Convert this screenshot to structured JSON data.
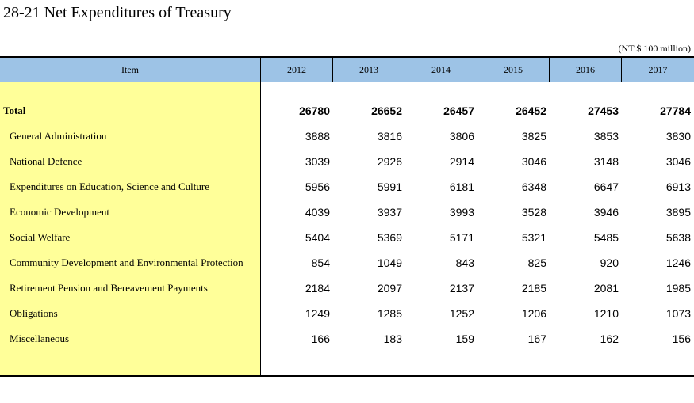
{
  "title": "28-21  Net Expenditures of Treasury",
  "unit": "(NT $ 100 million)",
  "header": {
    "item": "Item",
    "years": [
      "2012",
      "2013",
      "2014",
      "2015",
      "2016",
      "2017"
    ]
  },
  "rows": [
    {
      "label": "Total",
      "values": [
        "26780",
        "26652",
        "26457",
        "26452",
        "27453",
        "27784"
      ]
    },
    {
      "label": "General Administration",
      "values": [
        "3888",
        "3816",
        "3806",
        "3825",
        "3853",
        "3830"
      ]
    },
    {
      "label": "National Defence",
      "values": [
        "3039",
        "2926",
        "2914",
        "3046",
        "3148",
        "3046"
      ]
    },
    {
      "label": "Expenditures on Education, Science and Culture",
      "values": [
        "5956",
        "5991",
        "6181",
        "6348",
        "6647",
        "6913"
      ]
    },
    {
      "label": "Economic Development",
      "values": [
        "4039",
        "3937",
        "3993",
        "3528",
        "3946",
        "3895"
      ]
    },
    {
      "label": "Social Welfare",
      "values": [
        "5404",
        "5369",
        "5171",
        "5321",
        "5485",
        "5638"
      ]
    },
    {
      "label": "Community Development and Environmental Protection",
      "values": [
        "854",
        "1049",
        "843",
        "825",
        "920",
        "1246"
      ]
    },
    {
      "label": "Retirement Pension and Bereavement Payments",
      "values": [
        "2184",
        "2097",
        "2137",
        "2185",
        "2081",
        "1985"
      ]
    },
    {
      "label": "Obligations",
      "values": [
        "1249",
        "1285",
        "1252",
        "1206",
        "1210",
        "1073"
      ]
    },
    {
      "label": "Miscellaneous",
      "values": [
        "166",
        "183",
        "159",
        "167",
        "162",
        "156"
      ]
    }
  ],
  "colors": {
    "header_bg": "#9dc3e6",
    "item_col_bg": "#ffff99"
  }
}
